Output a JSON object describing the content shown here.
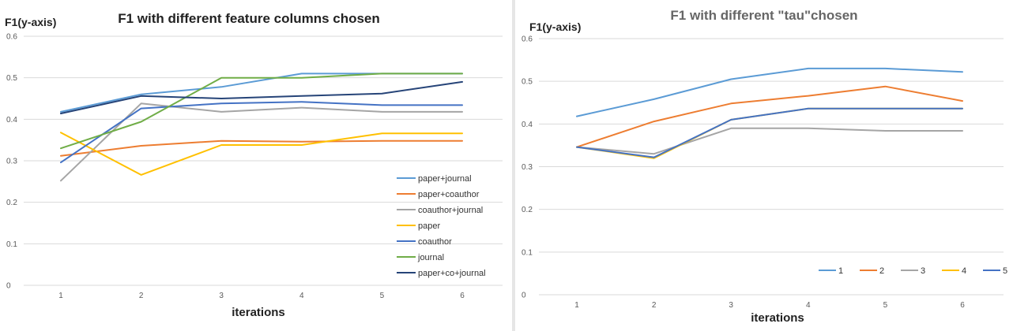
{
  "chart_data": [
    {
      "type": "line",
      "title": "F1 with different feature columns chosen",
      "ylabel": "F1(y-axis)",
      "xlabel": "iterations",
      "categories": [
        "1",
        "2",
        "3",
        "4",
        "5",
        "6"
      ],
      "ylim": [
        0,
        0.6
      ],
      "yticks": [
        "0",
        "0.1",
        "0.2",
        "0.3",
        "0.4",
        "0.5",
        "0.6"
      ],
      "grid": true,
      "legend_position": "bottom-right",
      "series": [
        {
          "name": "paper+journal",
          "color": "#5b9bd5",
          "values": [
            0.418,
            0.46,
            0.478,
            0.51,
            0.51,
            0.51
          ]
        },
        {
          "name": "paper+coauthor",
          "color": "#ed7d31",
          "values": [
            0.312,
            0.336,
            0.348,
            0.346,
            0.348,
            0.348
          ]
        },
        {
          "name": "coauthor+journal",
          "color": "#a5a5a5",
          "values": [
            0.252,
            0.438,
            0.418,
            0.428,
            0.418,
            0.418
          ]
        },
        {
          "name": "paper",
          "color": "#ffc000",
          "values": [
            0.368,
            0.266,
            0.338,
            0.338,
            0.366,
            0.366
          ]
        },
        {
          "name": "coauthor",
          "color": "#4472c4",
          "values": [
            0.296,
            0.426,
            0.438,
            0.442,
            0.434,
            0.434
          ]
        },
        {
          "name": "journal",
          "color": "#70ad47",
          "values": [
            0.33,
            0.394,
            0.5,
            0.5,
            0.51,
            0.51
          ]
        },
        {
          "name": "paper+co+journal",
          "color": "#264478",
          "values": [
            0.414,
            0.456,
            0.45,
            0.456,
            0.462,
            0.49
          ]
        }
      ]
    },
    {
      "type": "line",
      "title": "F1 with different \"tau\"chosen",
      "ylabel": "F1(y-axis)",
      "xlabel": "iterations",
      "categories": [
        "1",
        "2",
        "3",
        "4",
        "5",
        "6"
      ],
      "ylim": [
        0,
        0.6
      ],
      "yticks": [
        "0",
        "0.1",
        "0.2",
        "0.3",
        "0.4",
        "0.5",
        "0.6"
      ],
      "grid": true,
      "legend_position": "bottom-right",
      "series": [
        {
          "name": "1",
          "color": "#5b9bd5",
          "values": [
            0.418,
            0.458,
            0.505,
            0.53,
            0.53,
            0.522
          ]
        },
        {
          "name": "2",
          "color": "#ed7d31",
          "values": [
            0.346,
            0.406,
            0.448,
            0.466,
            0.488,
            0.454
          ]
        },
        {
          "name": "3",
          "color": "#a5a5a5",
          "values": [
            0.346,
            0.33,
            0.39,
            0.39,
            0.384,
            0.384
          ]
        },
        {
          "name": "4",
          "color": "#ffc000",
          "values": [
            0.346,
            0.32,
            0.41,
            0.436,
            0.436,
            0.436
          ]
        },
        {
          "name": "5",
          "color": "#4472c4",
          "values": [
            0.346,
            0.322,
            0.41,
            0.436,
            0.436,
            0.436
          ]
        }
      ]
    }
  ]
}
